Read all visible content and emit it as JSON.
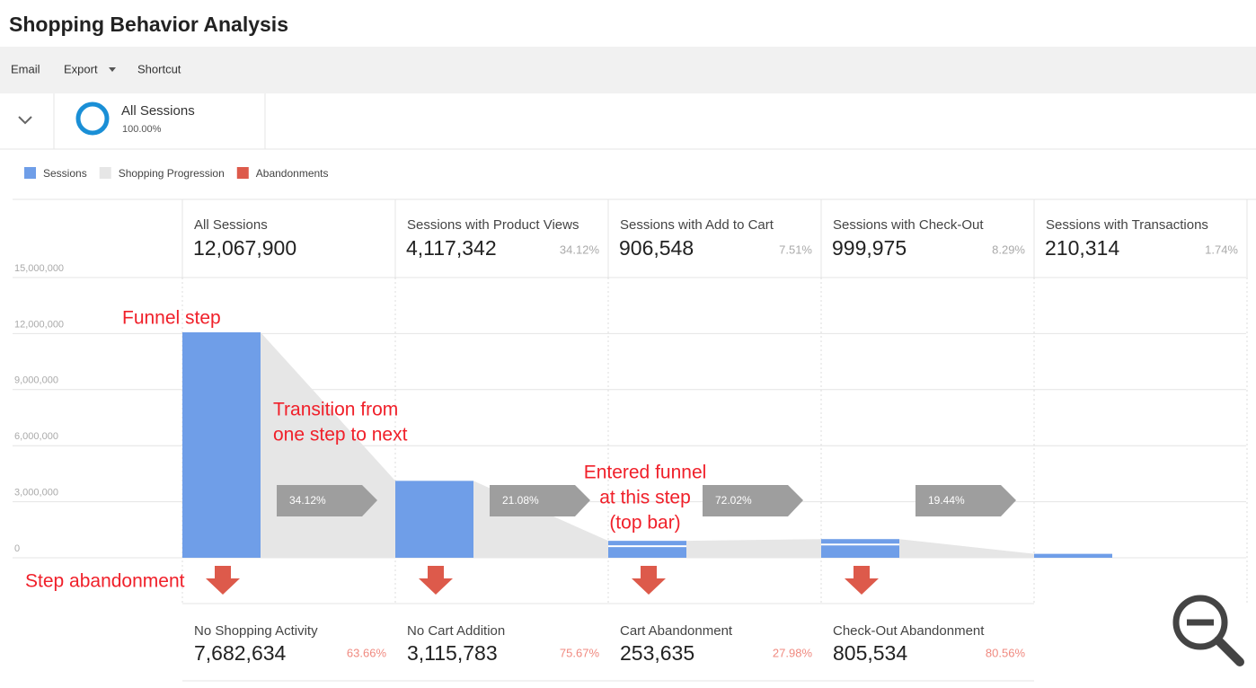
{
  "header": {
    "title": "Shopping Behavior Analysis"
  },
  "toolbar": [
    "Email",
    "Export",
    "Shortcut"
  ],
  "segment": {
    "name": "All Sessions",
    "percent": "100.00%"
  },
  "chart_data": {
    "type": "funnel",
    "legend": [
      {
        "name": "Sessions",
        "color": "#6f9ee8"
      },
      {
        "name": "Shopping Progression",
        "color": "#e6e6e6"
      },
      {
        "name": "Abandonments",
        "color": "#dd5a4b"
      }
    ],
    "ylim": [
      0,
      15000000
    ],
    "yticks": [
      {
        "value": 0,
        "label": "0"
      },
      {
        "value": 3000000,
        "label": "3,000,000"
      },
      {
        "value": 6000000,
        "label": "6,000,000"
      },
      {
        "value": 9000000,
        "label": "9,000,000"
      },
      {
        "value": 12000000,
        "label": "12,000,000"
      },
      {
        "value": 15000000,
        "label": "15,000,000"
      }
    ],
    "grid": true,
    "categories": [
      "All Sessions",
      "Sessions with Product Views",
      "Sessions with Add to Cart",
      "Sessions with Check-Out",
      "Sessions with Transactions"
    ],
    "series": [
      {
        "name": "Sessions",
        "color": "#6f9ee8",
        "values": [
          12067900,
          4117342,
          906548,
          999975,
          210314
        ],
        "value_labels": [
          "12,067,900",
          "4,117,342",
          "906,548",
          "999,975",
          "210,314"
        ]
      }
    ],
    "percents": [
      null,
      "34.12%",
      "7.51%",
      "8.29%",
      "1.74%"
    ],
    "transitions": [
      "34.12%",
      "21.08%",
      "72.02%",
      "19.44%"
    ],
    "abandonments": [
      {
        "name": "No Shopping Activity",
        "value": "7,682,634",
        "percent": "63.66%"
      },
      {
        "name": "No Cart Addition",
        "value": "3,115,783",
        "percent": "75.67%"
      },
      {
        "name": "Cart Abandonment",
        "value": "253,635",
        "percent": "27.98%"
      },
      {
        "name": "Check-Out Abandonment",
        "value": "805,534",
        "percent": "80.56%"
      }
    ],
    "annotations": [
      {
        "lines": [
          "Funnel step"
        ]
      },
      {
        "lines": [
          "Transition from",
          "one step to next"
        ]
      },
      {
        "lines": [
          "Entered funnel",
          "at this step",
          "(top bar)"
        ]
      },
      {
        "lines": [
          "Step abandonment"
        ]
      }
    ]
  }
}
